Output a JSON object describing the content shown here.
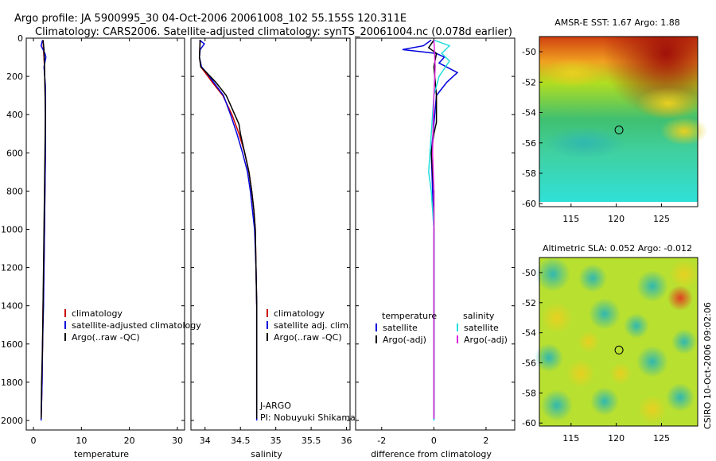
{
  "header": {
    "line1": "Argo profile: JA 5900995_30 04-Oct-2006 20061008_102 55.155S 120.311E",
    "line2": "Climatology: CARS2006. Satellite-adjusted climatology: synTS_20061004.nc (0.078d earlier)"
  },
  "footer": {
    "stamp": "CSIRO 10-Oct-2006 09:02:06"
  },
  "colors": {
    "climatology": "#cc0000",
    "satellite": "#0000dd",
    "argo": "#000000",
    "salinity_satellite": "#22dddd",
    "argo_adj": "#dd22dd"
  },
  "chart_data": [
    {
      "type": "line",
      "name": "temperature",
      "xlabel": "temperature",
      "xlim": [
        -1.5,
        31.5
      ],
      "ylim": [
        2050,
        0
      ],
      "xticks": [
        0,
        10,
        20,
        30
      ],
      "yticks": [
        0,
        200,
        400,
        600,
        800,
        1000,
        1200,
        1400,
        1600,
        1800,
        2000
      ],
      "legend": [
        "climatology",
        "satellite-adjusted climatology",
        "Argo(..raw -QC)"
      ],
      "series": [
        {
          "name": "climatology",
          "color": "#cc0000",
          "points": [
            [
              2.0,
              10
            ],
            [
              2.1,
              60
            ],
            [
              2.2,
              100
            ],
            [
              2.3,
              150
            ],
            [
              2.4,
              250
            ],
            [
              2.5,
              400
            ],
            [
              2.5,
              600
            ],
            [
              2.4,
              800
            ],
            [
              2.3,
              1000
            ],
            [
              2.2,
              1200
            ],
            [
              2.0,
              1400
            ],
            [
              1.9,
              1600
            ],
            [
              1.8,
              1800
            ],
            [
              1.6,
              2000
            ]
          ]
        },
        {
          "name": "satellite-adjusted climatology",
          "color": "#0000dd",
          "points": [
            [
              1.9,
              10
            ],
            [
              1.6,
              40
            ],
            [
              2.4,
              80
            ],
            [
              2.6,
              100
            ],
            [
              2.2,
              150
            ],
            [
              2.5,
              250
            ],
            [
              2.5,
              400
            ],
            [
              2.5,
              600
            ],
            [
              2.4,
              800
            ],
            [
              2.3,
              1000
            ],
            [
              2.2,
              1200
            ],
            [
              2.1,
              1400
            ],
            [
              1.9,
              1600
            ],
            [
              1.8,
              1800
            ],
            [
              1.6,
              2000
            ]
          ]
        },
        {
          "name": "Argo(..raw -QC)",
          "color": "#000000",
          "points": [
            [
              2.0,
              10
            ],
            [
              2.2,
              60
            ],
            [
              2.3,
              150
            ],
            [
              2.4,
              250
            ],
            [
              2.5,
              400
            ],
            [
              2.4,
              600
            ],
            [
              2.3,
              800
            ],
            [
              2.2,
              1000
            ],
            [
              2.1,
              1200
            ],
            [
              2.0,
              1400
            ],
            [
              1.9,
              1600
            ],
            [
              1.7,
              1800
            ],
            [
              1.6,
              1990
            ]
          ]
        }
      ]
    },
    {
      "type": "line",
      "name": "salinity",
      "xlabel": "salinity",
      "xlim": [
        33.8,
        36.05
      ],
      "ylim": [
        2050,
        0
      ],
      "xticks": [
        34,
        34.5,
        35,
        35.5,
        36
      ],
      "xticklabels": [
        "34",
        "34.5",
        "35",
        "35.5",
        "36"
      ],
      "legend": [
        "climatology",
        "satellite adj. clim.",
        "Argo(..raw -QC)"
      ],
      "annotations": [
        "J-ARGO",
        "PI: Nobuyuki Shikama"
      ],
      "series": [
        {
          "name": "climatology",
          "color": "#cc0000",
          "points": [
            [
              33.93,
              10
            ],
            [
              33.92,
              100
            ],
            [
              33.94,
              150
            ],
            [
              34.0,
              180
            ],
            [
              34.1,
              230
            ],
            [
              34.25,
              300
            ],
            [
              34.38,
              400
            ],
            [
              34.48,
              500
            ],
            [
              34.56,
              600
            ],
            [
              34.62,
              700
            ],
            [
              34.66,
              800
            ],
            [
              34.69,
              900
            ],
            [
              34.71,
              1000
            ],
            [
              34.72,
              1200
            ],
            [
              34.73,
              1400
            ],
            [
              34.73,
              1600
            ],
            [
              34.73,
              1800
            ],
            [
              34.73,
              2000
            ]
          ]
        },
        {
          "name": "satellite adj. clim.",
          "color": "#0000dd",
          "points": [
            [
              33.92,
              10
            ],
            [
              33.99,
              30
            ],
            [
              33.93,
              60
            ],
            [
              33.92,
              100
            ],
            [
              33.95,
              150
            ],
            [
              34.02,
              180
            ],
            [
              34.12,
              230
            ],
            [
              34.26,
              300
            ],
            [
              34.36,
              400
            ],
            [
              34.45,
              500
            ],
            [
              34.53,
              600
            ],
            [
              34.6,
              700
            ],
            [
              34.64,
              800
            ],
            [
              34.67,
              900
            ],
            [
              34.7,
              1000
            ],
            [
              34.72,
              1200
            ],
            [
              34.73,
              1400
            ],
            [
              34.73,
              1600
            ],
            [
              34.73,
              1800
            ],
            [
              34.73,
              2000
            ]
          ]
        },
        {
          "name": "Argo(..raw -QC)",
          "color": "#000000",
          "points": [
            [
              33.93,
              10
            ],
            [
              33.92,
              100
            ],
            [
              33.94,
              150
            ],
            [
              34.02,
              180
            ],
            [
              34.15,
              230
            ],
            [
              34.3,
              300
            ],
            [
              34.42,
              400
            ],
            [
              34.48,
              450
            ],
            [
              34.5,
              500
            ],
            [
              34.56,
              600
            ],
            [
              34.62,
              700
            ],
            [
              34.66,
              800
            ],
            [
              34.69,
              900
            ],
            [
              34.71,
              1000
            ],
            [
              34.72,
              1200
            ],
            [
              34.73,
              1400
            ],
            [
              34.73,
              1600
            ],
            [
              34.73,
              1800
            ],
            [
              34.73,
              1990
            ]
          ]
        }
      ]
    },
    {
      "type": "line",
      "name": "difference",
      "xlabel": "difference from climatology",
      "xlim": [
        -3,
        3.1
      ],
      "ylim": [
        2050,
        0
      ],
      "xticks": [
        -2,
        0,
        2
      ],
      "legend_headers": [
        "temperature",
        "salinity"
      ],
      "legend": [
        "satellite",
        "Argo(-adj)",
        "satellite",
        "Argo(-adj)"
      ],
      "series": [
        {
          "name": "temperature satellite",
          "color": "#0000dd",
          "points": [
            [
              -0.1,
              10
            ],
            [
              -0.4,
              40
            ],
            [
              -1.2,
              60
            ],
            [
              0.1,
              80
            ],
            [
              0.4,
              100
            ],
            [
              0.2,
              130
            ],
            [
              0.9,
              180
            ],
            [
              0.5,
              230
            ],
            [
              0.1,
              300
            ],
            [
              0.0,
              450
            ],
            [
              -0.1,
              600
            ],
            [
              0.0,
              1000
            ],
            [
              0.0,
              1500
            ],
            [
              0.0,
              2000
            ]
          ]
        },
        {
          "name": "temperature Argo(-adj)",
          "color": "#000000",
          "points": [
            [
              0.0,
              10
            ],
            [
              -0.2,
              50
            ],
            [
              0.1,
              80
            ],
            [
              0.0,
              150
            ],
            [
              0.1,
              300
            ],
            [
              0.1,
              440
            ],
            [
              0.0,
              500
            ],
            [
              -0.1,
              600
            ],
            [
              0.0,
              800
            ],
            [
              0.0,
              1500
            ],
            [
              0.0,
              1990
            ]
          ]
        },
        {
          "name": "salinity satellite",
          "color": "#22dddd",
          "points": [
            [
              0.0,
              10
            ],
            [
              0.6,
              40
            ],
            [
              0.3,
              80
            ],
            [
              0.6,
              120
            ],
            [
              0.2,
              200
            ],
            [
              0.0,
              300
            ],
            [
              -0.1,
              500
            ],
            [
              -0.2,
              700
            ],
            [
              -0.1,
              800
            ],
            [
              0.0,
              1000
            ],
            [
              0.0,
              1500
            ],
            [
              0.0,
              2000
            ]
          ]
        },
        {
          "name": "salinity Argo(-adj)",
          "color": "#dd22dd",
          "points": [
            [
              0.0,
              10
            ],
            [
              0.05,
              150
            ],
            [
              0.0,
              300
            ],
            [
              -0.05,
              600
            ],
            [
              0.0,
              800
            ],
            [
              0.0,
              1500
            ],
            [
              0.0,
              1990
            ]
          ]
        }
      ]
    },
    {
      "type": "heatmap",
      "name": "sst-map",
      "title": "AMSR-E SST: 1.67 Argo: 1.88",
      "xlim": [
        111.5,
        129
      ],
      "ylim": [
        -60.2,
        -49
      ],
      "xticks": [
        115,
        120,
        125
      ],
      "yticks": [
        -50,
        -52,
        -54,
        -56,
        -58,
        -60
      ],
      "marker": [
        120.3,
        -55.15
      ]
    },
    {
      "type": "heatmap",
      "name": "sla-map",
      "title": "Altimetric SLA: 0.052 Argo: -0.012",
      "xlim": [
        111.5,
        129
      ],
      "ylim": [
        -60.2,
        -49
      ],
      "xticks": [
        115,
        120,
        125
      ],
      "yticks": [
        -50,
        -52,
        -54,
        -56,
        -58,
        -60
      ],
      "marker": [
        120.3,
        -55.15
      ]
    }
  ]
}
